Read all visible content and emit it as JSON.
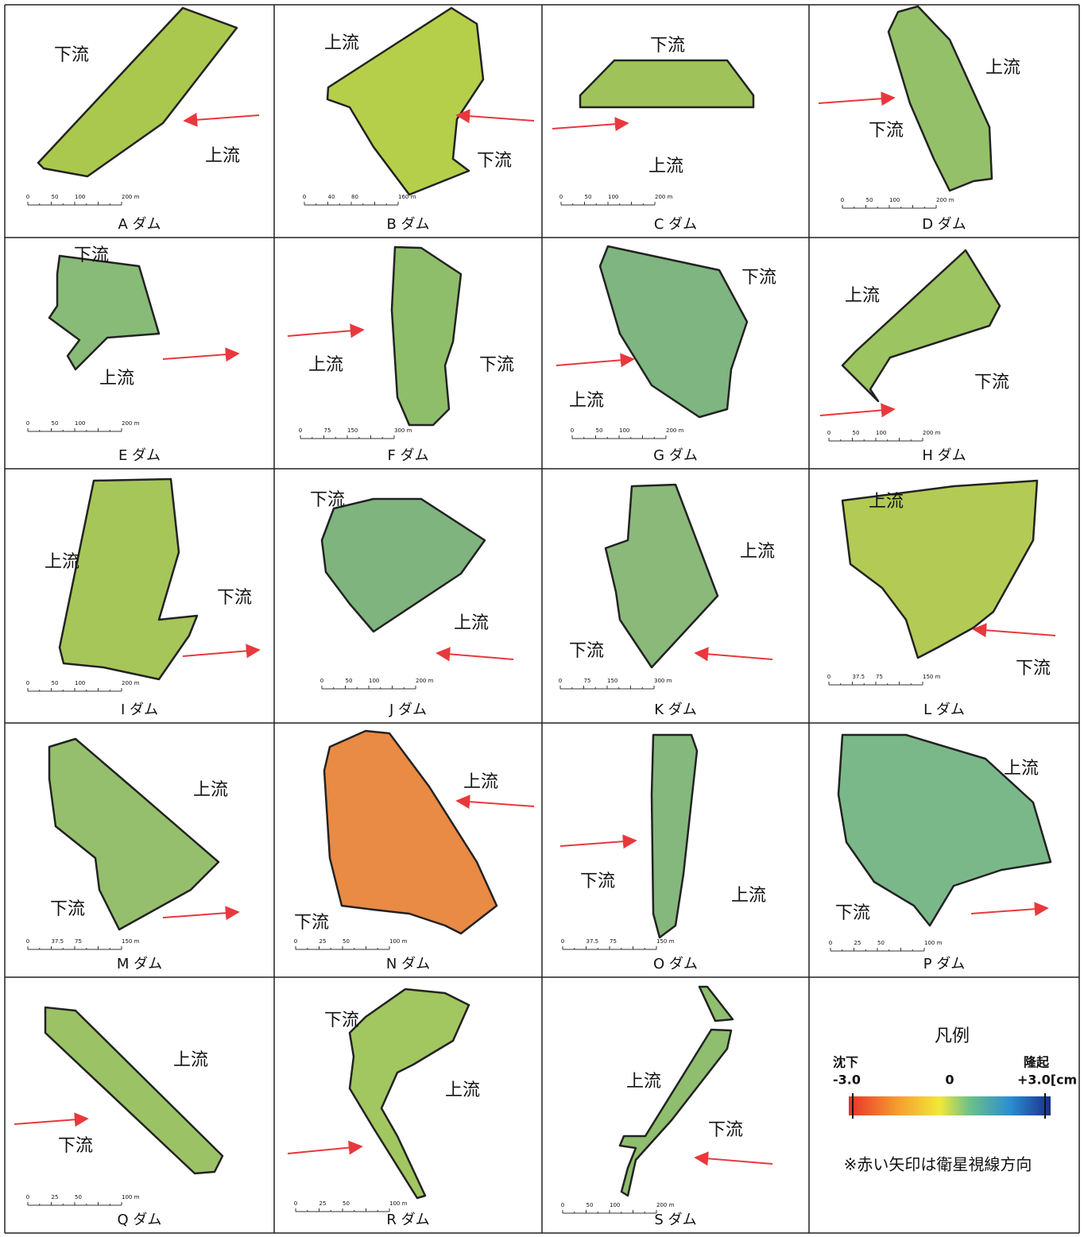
{
  "panels": [
    {
      "label": "A ダム",
      "upstream": "上流",
      "downstream": "下流",
      "scale": [
        "0",
        "50",
        "100",
        "200 m"
      ]
    },
    {
      "label": "B ダム",
      "upstream": "上流",
      "downstream": "下流",
      "scale": [
        "0",
        "40",
        "80",
        "160 m"
      ]
    },
    {
      "label": "C ダム",
      "upstream": "上流",
      "downstream": "下流",
      "scale": [
        "0",
        "50",
        "100",
        "200 m"
      ]
    },
    {
      "label": "D ダム",
      "upstream": "上流",
      "downstream": "下流",
      "scale": [
        "0",
        "50",
        "100",
        "200 m"
      ]
    },
    {
      "label": "E ダム",
      "upstream": "上流",
      "downstream": "下流",
      "scale": [
        "0",
        "50",
        "100",
        "200 m"
      ]
    },
    {
      "label": "F ダム",
      "upstream": "上流",
      "downstream": "下流",
      "scale": [
        "0",
        "75",
        "150",
        "300 m"
      ]
    },
    {
      "label": "G ダム",
      "upstream": "上流",
      "downstream": "下流",
      "scale": [
        "0",
        "50",
        "100",
        "200 m"
      ]
    },
    {
      "label": "H ダム",
      "upstream": "上流",
      "downstream": "下流",
      "scale": [
        "0",
        "50",
        "100",
        "200 m"
      ]
    },
    {
      "label": "I ダム",
      "upstream": "上流",
      "downstream": "下流",
      "scale": [
        "0",
        "50",
        "100",
        "200 m"
      ]
    },
    {
      "label": "J ダム",
      "upstream": "上流",
      "downstream": "下流",
      "scale": [
        "0",
        "50",
        "100",
        "200 m"
      ]
    },
    {
      "label": "K ダム",
      "upstream": "上流",
      "downstream": "下流",
      "scale": [
        "0",
        "75",
        "150",
        "300 m"
      ]
    },
    {
      "label": "L ダム",
      "upstream": "上流",
      "downstream": "下流",
      "scale": [
        "0",
        "37.5",
        "75",
        "150 m"
      ]
    },
    {
      "label": "M ダム",
      "upstream": "上流",
      "downstream": "下流",
      "scale": [
        "0",
        "37.5",
        "75",
        "150 m"
      ]
    },
    {
      "label": "N ダム",
      "upstream": "上流",
      "downstream": "下流",
      "scale": [
        "0",
        "25",
        "50",
        "100 m"
      ]
    },
    {
      "label": "O ダム",
      "upstream": "上流",
      "downstream": "下流",
      "scale": [
        "0",
        "37.5",
        "75",
        "150 m"
      ]
    },
    {
      "label": "P ダム",
      "upstream": "上流",
      "downstream": "下流",
      "scale": [
        "0",
        "25",
        "50",
        "100 m"
      ]
    },
    {
      "label": "Q ダム",
      "upstream": "上流",
      "downstream": "下流",
      "scale": [
        "0",
        "25",
        "50",
        "100 m"
      ]
    },
    {
      "label": "R ダム",
      "upstream": "上流",
      "downstream": "下流",
      "scale": [
        "0",
        "25",
        "50",
        "100 m"
      ]
    },
    {
      "label": "S ダム",
      "upstream": "上流",
      "downstream": "下流",
      "scale": [
        "0",
        "50",
        "100",
        "200 m"
      ]
    }
  ],
  "legend": {
    "title": "凡例",
    "left_label": "沈下",
    "min": "-3.0",
    "mid": "0",
    "right_label": "隆起",
    "max": "+3.0[cm",
    "note": "※赤い矢印は衛星視線方向"
  }
}
